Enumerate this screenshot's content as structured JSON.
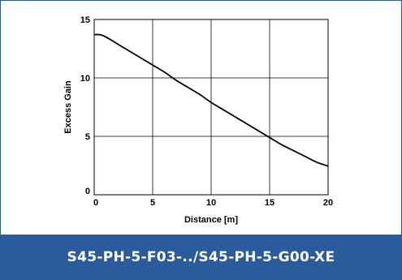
{
  "chart_data": {
    "type": "line",
    "title": "",
    "xlabel": "Distance [m]",
    "ylabel": "Excess Gain",
    "xlim": [
      0,
      20
    ],
    "ylim": [
      0,
      15
    ],
    "xticks": [
      "0",
      "5",
      "10",
      "15",
      "20"
    ],
    "yticks": [
      "0",
      "5",
      "10",
      "15"
    ],
    "grid": true,
    "series": [
      {
        "x": [
          0,
          0.5,
          1,
          2,
          3,
          4,
          5,
          6,
          7,
          8,
          9,
          10,
          11,
          12,
          13,
          14,
          15,
          16,
          17,
          18,
          19,
          20
        ],
        "y": [
          13.7,
          13.7,
          13.5,
          12.9,
          12.3,
          11.7,
          11.1,
          10.5,
          9.8,
          9.2,
          8.6,
          7.9,
          7.3,
          6.7,
          6.1,
          5.5,
          4.9,
          4.3,
          3.8,
          3.3,
          2.8,
          2.45
        ]
      }
    ],
    "line_color": "#000000"
  },
  "footer": {
    "model": "S45-PH-5-F03-../S45-PH-5-G00-XE"
  },
  "colors": {
    "brand": "#2a5b9a"
  }
}
